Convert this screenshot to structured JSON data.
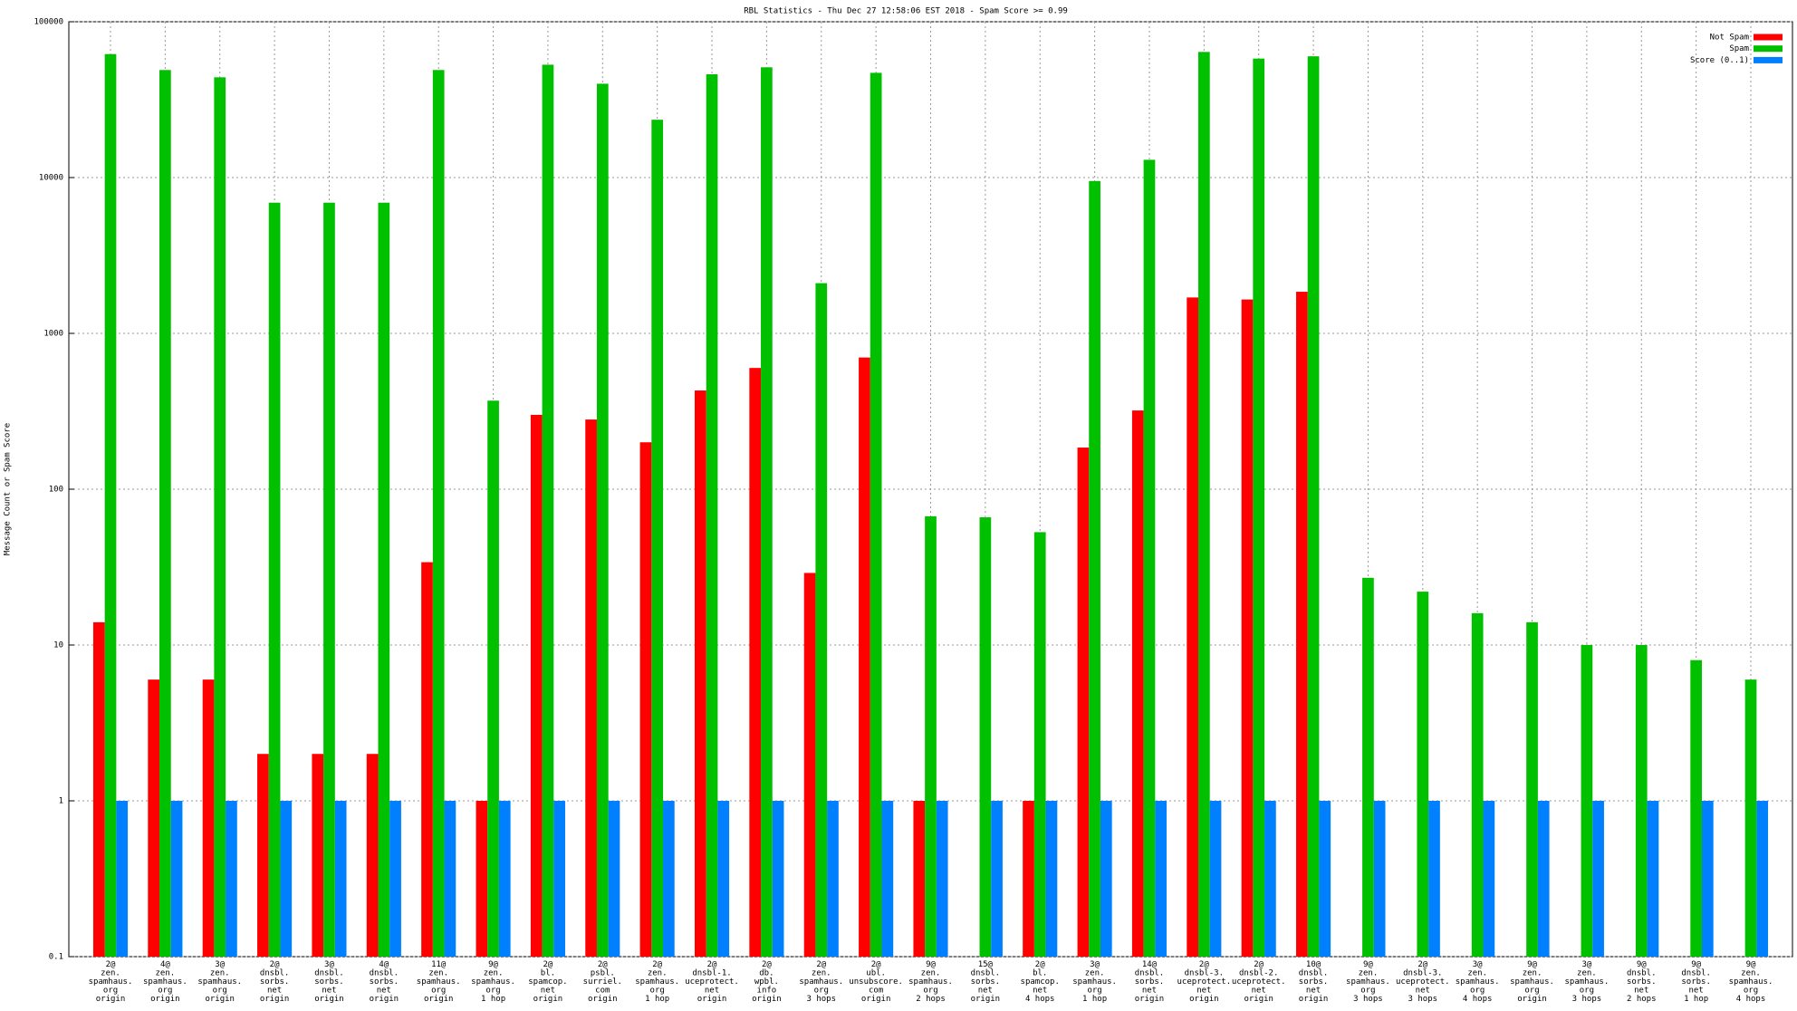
{
  "chart_data": {
    "type": "bar",
    "title": "RBL Statistics - Thu Dec 27 12:58:06 EST 2018 - Spam Score >= 0.99",
    "ylabel": "Message Count or Spam Score",
    "categories": [
      "2@\nzen.\nspamhaus.\norg\norigin",
      "4@\nzen.\nspamhaus.\norg\norigin",
      "3@\nzen.\nspamhaus.\norg\norigin",
      "2@\ndnsbl.\nsorbs.\nnet\norigin",
      "3@\ndnsbl.\nsorbs.\nnet\norigin",
      "4@\ndnsbl.\nsorbs.\nnet\norigin",
      "11@\nzen.\nspamhaus.\norg\norigin",
      "9@\nzen.\nspamhaus.\norg\n1 hop",
      "2@\nbl.\nspamcop.\nnet\norigin",
      "2@\npsbl.\nsurriel.\ncom\norigin",
      "2@\nzen.\nspamhaus.\norg\n1 hop",
      "2@\ndnsbl-1.\nuceprotect.\nnet\norigin",
      "2@\ndb.\nwpbl.\ninfo\norigin",
      "2@\nzen.\nspamhaus.\norg\n3 hops",
      "2@\nubl.\nunsubscore.\ncom\norigin",
      "9@\nzen.\nspamhaus.\norg\n2 hops",
      "15@\ndnsbl.\nsorbs.\nnet\norigin",
      "2@\nbl.\nspamcop.\nnet\n4 hops",
      "3@\nzen.\nspamhaus.\norg\n1 hop",
      "14@\ndnsbl.\nsorbs.\nnet\norigin",
      "2@\ndnsbl-3.\nuceprotect.\nnet\norigin",
      "2@\ndnsbl-2.\nuceprotect.\nnet\norigin",
      "10@\ndnsbl.\nsorbs.\nnet\norigin",
      "9@\nzen.\nspamhaus.\norg\n3 hops",
      "2@\ndnsbl-3.\nuceprotect.\nnet\n3 hops",
      "3@\nzen.\nspamhaus.\norg\n4 hops",
      "9@\nzen.\nspamhaus.\norg\norigin",
      "3@\nzen.\nspamhaus.\norg\n3 hops",
      "9@\ndnsbl.\nsorbs.\nnet\n2 hops",
      "9@\ndnsbl.\nsorbs.\nnet\n1 hop",
      "9@\nzen.\nspamhaus.\norg\n4 hops"
    ],
    "series": [
      {
        "name": "Not Spam",
        "color": "#ff0000",
        "values": [
          14,
          6,
          6,
          2,
          2,
          2,
          34,
          1,
          300,
          280,
          200,
          430,
          600,
          29,
          700,
          1,
          null,
          1,
          185,
          320,
          1700,
          1650,
          1850,
          null,
          null,
          null,
          null,
          null,
          null,
          null,
          null
        ]
      },
      {
        "name": "Spam",
        "color": "#00c000",
        "values": [
          62000,
          49000,
          44000,
          6900,
          6900,
          6900,
          49000,
          370,
          53000,
          40000,
          23500,
          46000,
          51000,
          2100,
          47000,
          67,
          66,
          53,
          9500,
          13000,
          64000,
          58000,
          60000,
          27,
          22,
          16,
          14,
          10,
          10,
          8,
          6
        ]
      },
      {
        "name": "Score (0..1)",
        "color": "#0080ff",
        "values": [
          1,
          1,
          1,
          1,
          1,
          1,
          1,
          1,
          1,
          1,
          1,
          1,
          1,
          1,
          1,
          1,
          1,
          1,
          1,
          1,
          1,
          1,
          1,
          1,
          1,
          1,
          1,
          1,
          1,
          1,
          1
        ]
      }
    ],
    "ylim": [
      0.1,
      100000
    ],
    "yticks": [
      0.1,
      1,
      10,
      100,
      1000,
      10000,
      100000
    ],
    "log_scale": true,
    "grid": true,
    "legend": "upper right"
  }
}
